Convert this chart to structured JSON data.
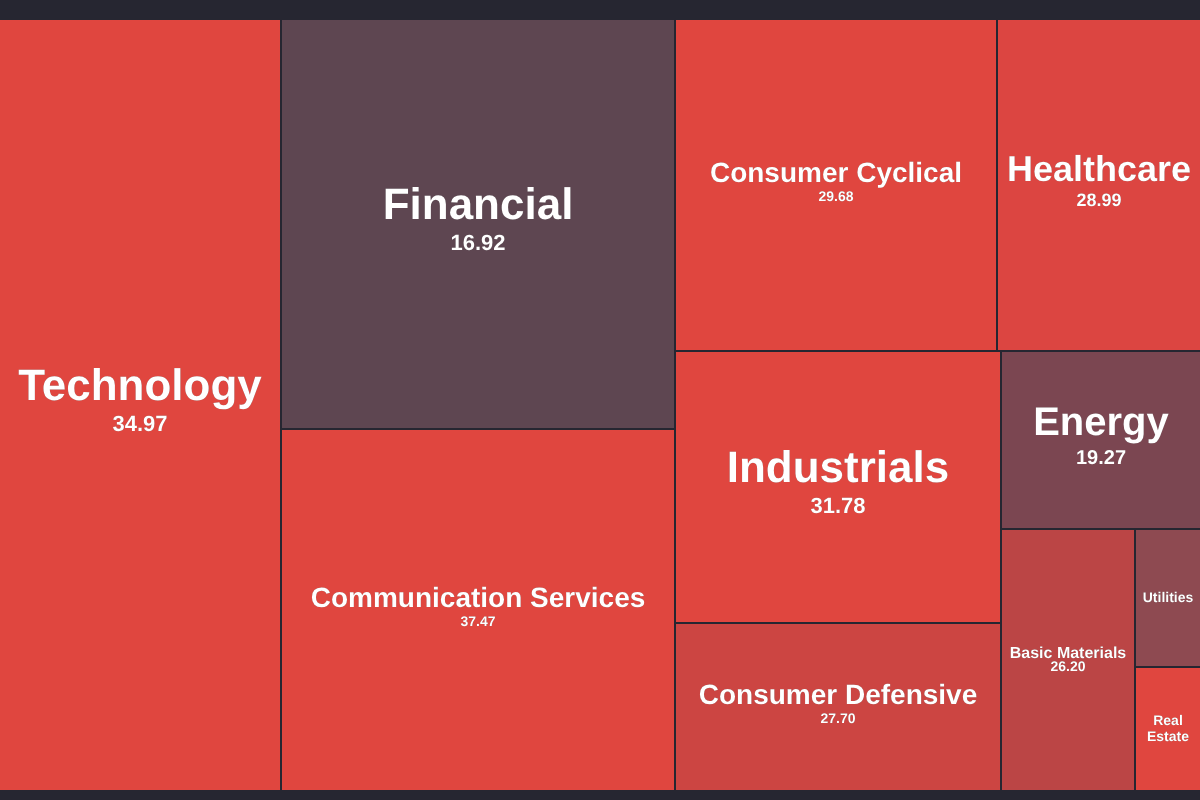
{
  "chart_data": {
    "type": "other",
    "categories": [
      "Technology",
      "Financial",
      "Communication Services",
      "Consumer Cyclical",
      "Industrials",
      "Consumer Defensive",
      "Healthcare",
      "Energy",
      "Basic Materials",
      "Utilities",
      "Real Estate"
    ],
    "values": [
      34.97,
      16.92,
      37.47,
      29.68,
      31.78,
      27.7,
      28.99,
      19.27,
      26.2,
      null,
      null
    ],
    "colors": [
      "#e0463f",
      "#5e4651",
      "#e0463f",
      "#e0463f",
      "#e0463f",
      "#cc4542",
      "#dc4541",
      "#7b4651",
      "#bb4545",
      "#8e4a51",
      "#e0463f"
    ],
    "value_labels": [
      "34.97",
      "16.92",
      "37.47",
      "29.68",
      "31.78",
      "27.70",
      "28.99",
      "19.27",
      "26.20",
      null,
      null
    ]
  }
}
